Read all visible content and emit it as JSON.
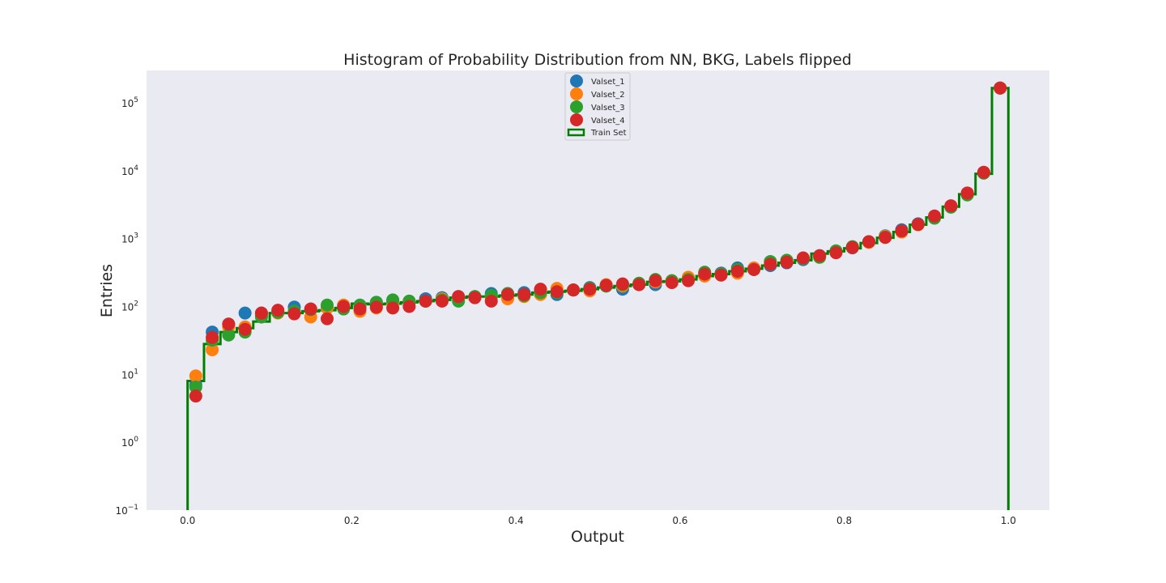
{
  "chart_data": {
    "type": "scatter",
    "title": "Histogram of Probability Distribution from NN, BKG, Labels flipped",
    "xlabel": "Output",
    "ylabel": "Entries",
    "xlim": [
      -0.05,
      1.05
    ],
    "ylim": [
      0.1,
      300000
    ],
    "yscale": "log",
    "grid": false,
    "background": "#eaeaf2",
    "legend_position": "upper center",
    "x_ticks": [
      0.0,
      0.2,
      0.4,
      0.6,
      0.8,
      1.0
    ],
    "x_tick_labels": [
      "0.0",
      "0.2",
      "0.4",
      "0.6",
      "0.8",
      "1.0"
    ],
    "y_ticks": [
      0.1,
      1,
      10,
      100,
      1000,
      10000,
      100000
    ],
    "y_tick_labels": [
      {
        "base": "10",
        "exp": "−1"
      },
      {
        "base": "10",
        "exp": "0"
      },
      {
        "base": "10",
        "exp": "1"
      },
      {
        "base": "10",
        "exp": "2"
      },
      {
        "base": "10",
        "exp": "3"
      },
      {
        "base": "10",
        "exp": "4"
      },
      {
        "base": "10",
        "exp": "5"
      }
    ],
    "x": [
      0.01,
      0.03,
      0.05,
      0.07,
      0.09,
      0.11,
      0.13,
      0.15,
      0.17,
      0.19,
      0.21,
      0.23,
      0.25,
      0.27,
      0.29,
      0.31,
      0.33,
      0.35,
      0.37,
      0.39,
      0.41,
      0.43,
      0.45,
      0.47,
      0.49,
      0.51,
      0.53,
      0.55,
      0.57,
      0.59,
      0.61,
      0.63,
      0.65,
      0.67,
      0.69,
      0.71,
      0.73,
      0.75,
      0.77,
      0.79,
      0.81,
      0.83,
      0.85,
      0.87,
      0.89,
      0.91,
      0.93,
      0.95,
      0.97,
      0.99
    ],
    "series": [
      {
        "name": "Valset_1",
        "color": "#1f77b4",
        "kind": "points",
        "values": [
          7,
          42,
          55,
          80,
          80,
          85,
          98,
          90,
          95,
          100,
          100,
          115,
          120,
          115,
          130,
          135,
          140,
          140,
          155,
          155,
          160,
          175,
          150,
          175,
          190,
          200,
          180,
          210,
          210,
          230,
          260,
          310,
          310,
          370,
          360,
          400,
          440,
          490,
          560,
          640,
          730,
          900,
          1100,
          1350,
          1650,
          2100,
          3000,
          4600,
          9400,
          165000
        ]
      },
      {
        "name": "Valset_2",
        "color": "#ff7f0e",
        "kind": "points",
        "values": [
          9.5,
          23,
          50,
          50,
          75,
          80,
          85,
          70,
          95,
          105,
          85,
          95,
          110,
          120,
          120,
          130,
          135,
          135,
          140,
          130,
          140,
          150,
          185,
          175,
          170,
          210,
          200,
          215,
          230,
          240,
          270,
          280,
          300,
          310,
          370,
          420,
          460,
          510,
          550,
          640,
          740,
          880,
          1080,
          1250,
          1600,
          2050,
          2950,
          4500,
          9300,
          165000
        ]
      },
      {
        "name": "Valset_3",
        "color": "#2ca02c",
        "kind": "points",
        "values": [
          6.5,
          32,
          38,
          42,
          70,
          82,
          85,
          90,
          105,
          92,
          105,
          115,
          125,
          120,
          120,
          125,
          120,
          140,
          145,
          155,
          145,
          160,
          160,
          175,
          185,
          200,
          210,
          220,
          250,
          240,
          250,
          320,
          300,
          350,
          350,
          460,
          480,
          510,
          530,
          660,
          760,
          900,
          1050,
          1300,
          1620,
          2000,
          2900,
          4400,
          9200,
          165000
        ]
      },
      {
        "name": "Valset_4",
        "color": "#d62728",
        "kind": "points",
        "values": [
          4.8,
          35,
          55,
          46,
          80,
          88,
          78,
          92,
          66,
          100,
          92,
          98,
          95,
          100,
          120,
          120,
          140,
          135,
          120,
          150,
          150,
          180,
          165,
          175,
          180,
          205,
          215,
          210,
          240,
          225,
          240,
          300,
          290,
          330,
          350,
          420,
          450,
          520,
          560,
          620,
          740,
          900,
          1040,
          1300,
          1620,
          2150,
          3050,
          4700,
          9500,
          165000
        ]
      }
    ],
    "train_set": {
      "name": "Train Set",
      "color": "#007f00",
      "kind": "step",
      "values": [
        8,
        28,
        42,
        48,
        60,
        80,
        80,
        85,
        88,
        95,
        110,
        108,
        110,
        115,
        120,
        125,
        135,
        140,
        140,
        145,
        150,
        160,
        165,
        170,
        180,
        190,
        200,
        210,
        230,
        235,
        250,
        280,
        300,
        330,
        360,
        400,
        440,
        480,
        600,
        650,
        720,
        860,
        1030,
        1250,
        1600,
        2050,
        2950,
        4500,
        9000,
        165000
      ]
    }
  }
}
